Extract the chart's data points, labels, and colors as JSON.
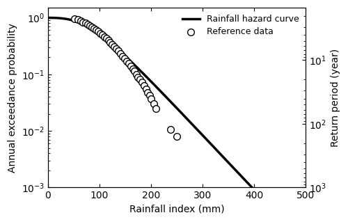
{
  "title": "",
  "xlabel": "Rainfall index (mm)",
  "ylabel_left": "Annual exceedance probability",
  "ylabel_right": "Return period (year)",
  "xlim": [
    0,
    500
  ],
  "x_ticks": [
    0,
    100,
    200,
    300,
    400,
    500
  ],
  "legend_line": "Rainfall hazard curve",
  "legend_marker": "Reference data",
  "ref_x": [
    52,
    58,
    63,
    68,
    73,
    77,
    81,
    85,
    89,
    93,
    97,
    101,
    105,
    109,
    113,
    117,
    121,
    125,
    129,
    133,
    137,
    141,
    145,
    149,
    153,
    157,
    161,
    165,
    168,
    172,
    175,
    178,
    182,
    186,
    190,
    193,
    197,
    200,
    205,
    210,
    238,
    250
  ],
  "ref_y": [
    0.96,
    0.92,
    0.88,
    0.84,
    0.8,
    0.76,
    0.72,
    0.68,
    0.64,
    0.6,
    0.57,
    0.53,
    0.5,
    0.46,
    0.43,
    0.4,
    0.37,
    0.34,
    0.31,
    0.28,
    0.26,
    0.23,
    0.21,
    0.19,
    0.17,
    0.155,
    0.14,
    0.125,
    0.113,
    0.1,
    0.09,
    0.082,
    0.072,
    0.063,
    0.055,
    0.048,
    0.042,
    0.037,
    0.03,
    0.025,
    0.0105,
    0.008
  ],
  "line_color": "#000000",
  "line_width": 2.5,
  "marker_facecolor": "white",
  "marker_edgecolor": "#000000",
  "marker_size": 7,
  "marker_linewidth": 1.0,
  "curve_gumbel_mu": 85.0,
  "curve_gumbel_beta": 45.0,
  "background_color": "#ffffff"
}
